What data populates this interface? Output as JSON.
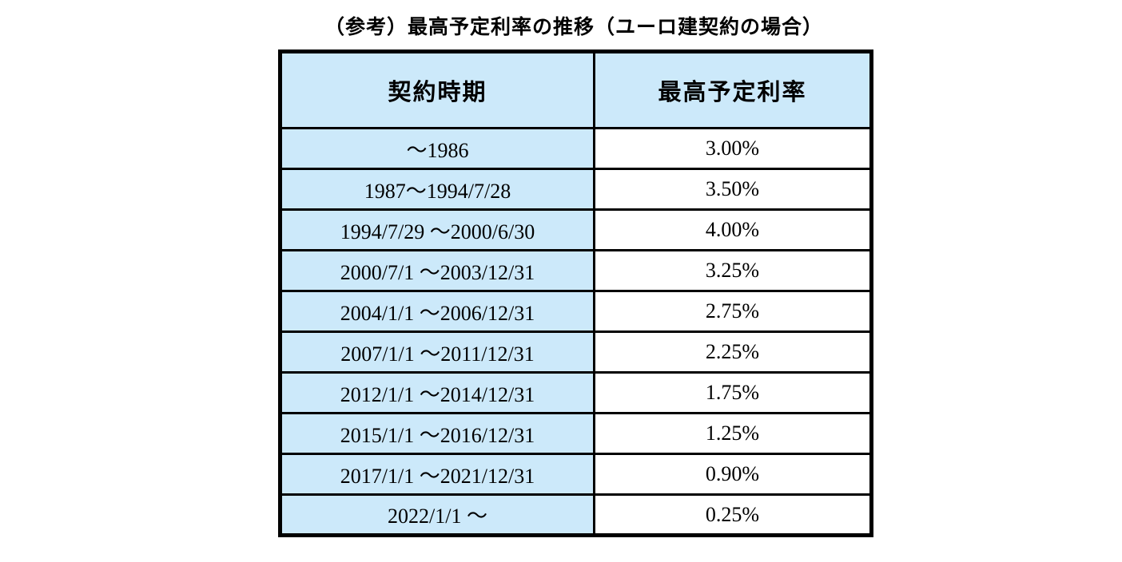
{
  "title": "（参考）最高予定利率の推移（ユーロ建契約の場合）",
  "colors": {
    "period_cell_background": "#cce9fa",
    "rate_cell_background": "#ffffff",
    "border": "#000000",
    "text": "#000000",
    "page_background": "#ffffff"
  },
  "chart_data": {
    "type": "table",
    "title": "（参考）最高予定利率の推移（ユーロ建契約の場合）",
    "columns": [
      "契約時期",
      "最高予定利率"
    ],
    "rows": [
      [
        "～1986",
        "3.00%"
      ],
      [
        "1987～1994/7/28",
        "3.50%"
      ],
      [
        "1994/7/29 ～2000/6/30",
        "4.00%"
      ],
      [
        "2000/7/1 ～2003/12/31",
        "3.25%"
      ],
      [
        "2004/1/1 ～2006/12/31",
        "2.75%"
      ],
      [
        "2007/1/1 ～2011/12/31",
        "2.25%"
      ],
      [
        "2012/1/1 ～2014/12/31",
        "1.75%"
      ],
      [
        "2015/1/1 ～2016/12/31",
        "1.25%"
      ],
      [
        "2017/1/1 ～2021/12/31",
        "0.90%"
      ],
      [
        "2022/1/1 ～",
        "0.25%"
      ]
    ],
    "rates_numeric": [
      3.0,
      3.5,
      4.0,
      3.25,
      2.75,
      2.25,
      1.75,
      1.25,
      0.9,
      0.25
    ],
    "notes": "Maximum assumed interest rate over time for Euro-denominated contracts; left column = contract period, right column = maximum assumed interest rate."
  }
}
